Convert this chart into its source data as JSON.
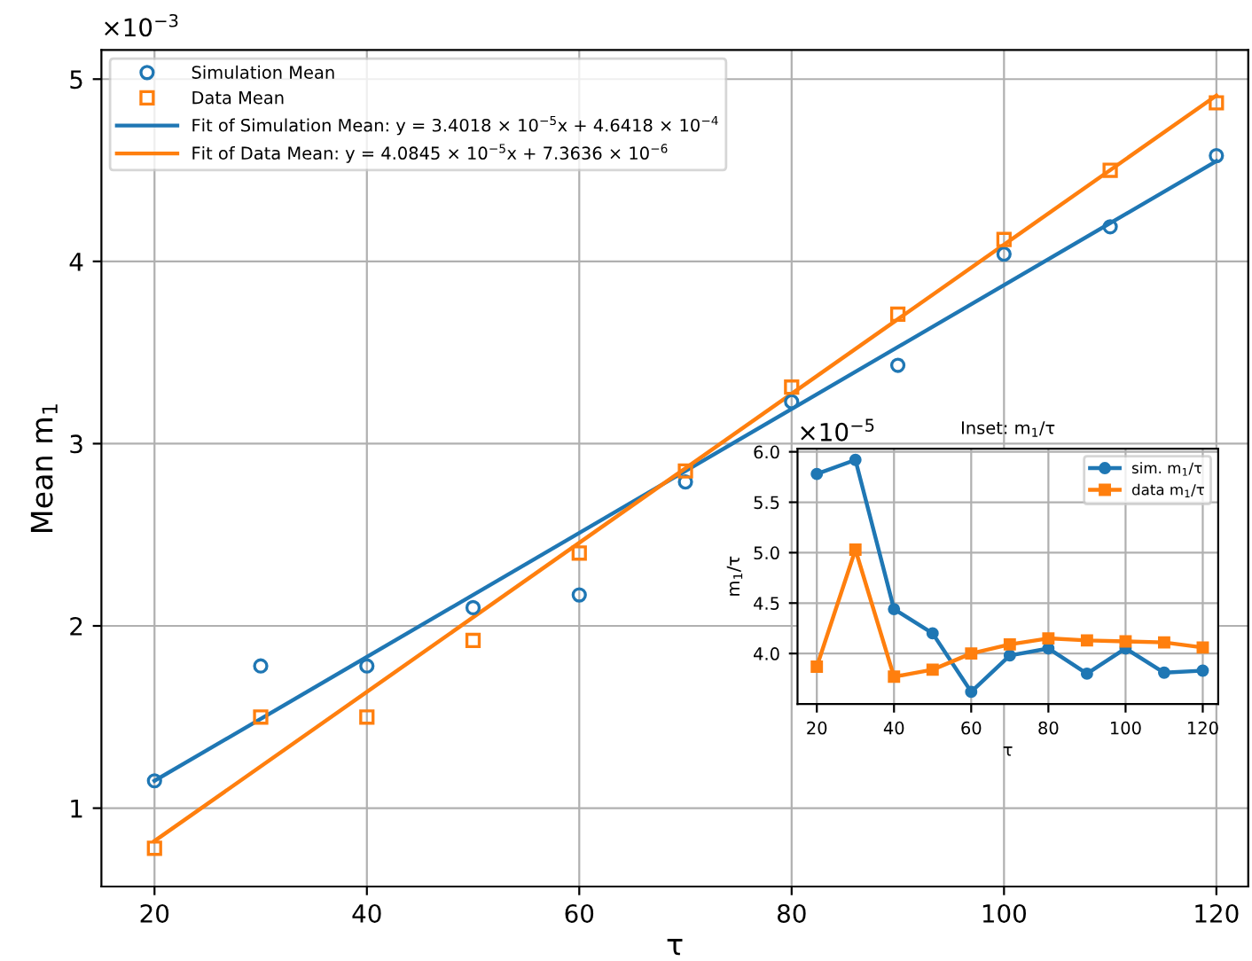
{
  "chart_data": [
    {
      "type": "scatter",
      "xlabel": "τ",
      "ylabel": "Mean m$_{1}$",
      "xlim": [
        15,
        123
      ],
      "ylim": [
        0.57,
        5.16
      ],
      "xticks": [
        20,
        40,
        60,
        80,
        100,
        120
      ],
      "yticks": [
        1,
        2,
        3,
        4,
        5
      ],
      "grid": true,
      "legend": "top left",
      "annotations": [
        "×10$^{−3}$"
      ],
      "series": [
        {
          "name": "Simulation Mean",
          "color": "#1f77b4",
          "marker": "circle",
          "x": [
            20,
            30,
            40,
            50,
            60,
            70,
            80,
            90,
            100,
            110,
            120
          ],
          "values": [
            1.15,
            1.78,
            1.78,
            2.1,
            2.17,
            2.79,
            3.23,
            3.43,
            4.04,
            4.19,
            4.58
          ]
        },
        {
          "name": "Data Mean",
          "color": "#ff7f0e",
          "marker": "square",
          "x": [
            20,
            30,
            40,
            50,
            60,
            70,
            80,
            90,
            100,
            110,
            120
          ],
          "values": [
            0.78,
            1.5,
            1.5,
            1.92,
            2.4,
            2.85,
            3.31,
            3.71,
            4.12,
            4.5,
            4.87
          ]
        },
        {
          "type": "line",
          "name": "Fit of Simulation Mean: y = 3.4018 × 10$^{−5}$x + 4.6418 × 10$^{−4}$",
          "color": "#1f77b4",
          "marker": "none",
          "x": [
            20,
            120
          ],
          "values": [
            1.15,
            4.55
          ]
        },
        {
          "type": "line",
          "name": "Fit of Data Mean: y = 4.0845 × 10$^{−5}$x + 7.3636 × 10$^{−6}$",
          "color": "#ff7f0e",
          "marker": "none",
          "x": [
            20,
            120
          ],
          "values": [
            0.82,
            4.91
          ]
        }
      ]
    },
    {
      "type": "line",
      "title": "Inset: m$_{1}$/τ",
      "xlabel": "τ",
      "ylabel": "m$_{1}$/τ",
      "xlim": [
        15,
        124
      ],
      "ylim": [
        3.5,
        6.03
      ],
      "xticks": [
        20,
        40,
        60,
        80,
        100,
        120
      ],
      "yticks": [
        {
          "value": 4.0,
          "label": "4.0"
        },
        {
          "value": 4.5,
          "label": "4.5"
        },
        {
          "value": 5.0,
          "label": "5.0"
        },
        {
          "value": 5.5,
          "label": "5.5"
        },
        {
          "value": 6.0,
          "label": "6.0"
        }
      ],
      "grid": true,
      "legend": "top right",
      "annotations": [
        "×10$^{−5}$"
      ],
      "series": [
        {
          "name": "sim. m$_{1}$/τ",
          "color": "#1f77b4",
          "marker": "circle",
          "x": [
            20,
            30,
            40,
            50,
            60,
            70,
            80,
            90,
            100,
            110,
            120
          ],
          "values": [
            5.78,
            5.92,
            4.44,
            4.2,
            3.62,
            3.98,
            4.05,
            3.8,
            4.05,
            3.81,
            3.83
          ]
        },
        {
          "name": "data m$_{1}$/τ",
          "color": "#ff7f0e",
          "marker": "square",
          "x": [
            20,
            30,
            40,
            50,
            60,
            70,
            80,
            90,
            100,
            110,
            120
          ],
          "values": [
            3.87,
            5.03,
            3.77,
            3.84,
            4.0,
            4.09,
            4.15,
            4.13,
            4.12,
            4.11,
            4.06
          ]
        }
      ]
    }
  ]
}
